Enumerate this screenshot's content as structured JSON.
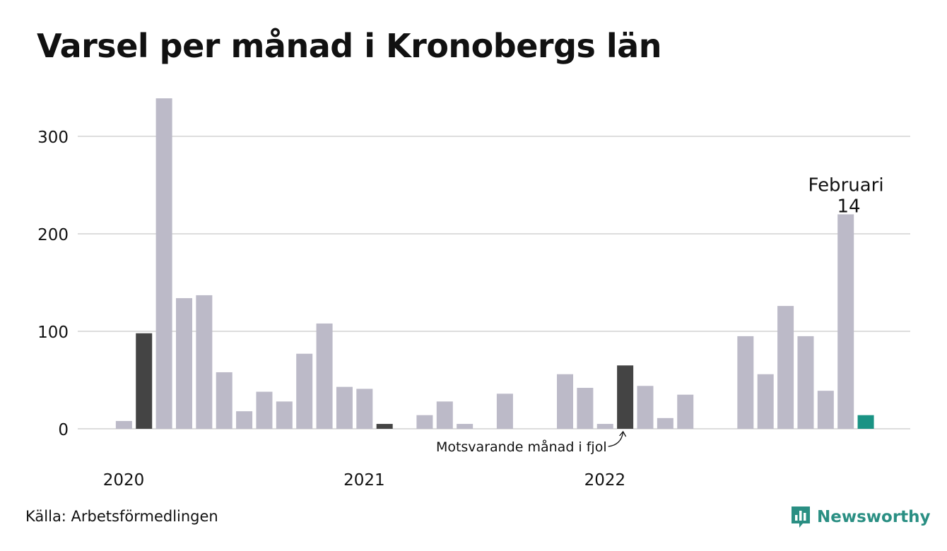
{
  "title": "Varsel per månad i Kronobergs län",
  "source": "Källa: Arbetsförmedlingen",
  "brand": "Newsworthy",
  "colors": {
    "bar": "#bcbac8",
    "highlight_prev_year": "#444444",
    "current": "#1a9384",
    "grid": "#dddddd",
    "brand": "#2a8f83"
  },
  "chart_data": {
    "type": "bar",
    "title": "Varsel per månad i Kronobergs län",
    "ylim": [
      0,
      340
    ],
    "yticks": [
      0,
      100,
      200,
      300
    ],
    "grid": true,
    "xtick_labels": [
      {
        "label": "2020",
        "index": 0
      },
      {
        "label": "2021",
        "index": 12
      },
      {
        "label": "2022",
        "index": 24
      }
    ],
    "values": [
      0,
      8,
      98,
      339,
      134,
      137,
      58,
      18,
      38,
      28,
      77,
      108,
      43,
      41,
      5,
      0,
      14,
      28,
      5,
      0,
      36,
      0,
      0,
      56,
      42,
      5,
      65,
      44,
      11,
      35,
      0,
      0,
      95,
      56,
      126,
      95,
      39,
      220,
      14
    ],
    "highlight_prev_year": [
      2,
      14,
      26
    ],
    "current_index": 38,
    "annotations": {
      "current_label": "Februari",
      "current_value": "14",
      "prev_year_label": "Motsvarande månad i fjol"
    }
  }
}
